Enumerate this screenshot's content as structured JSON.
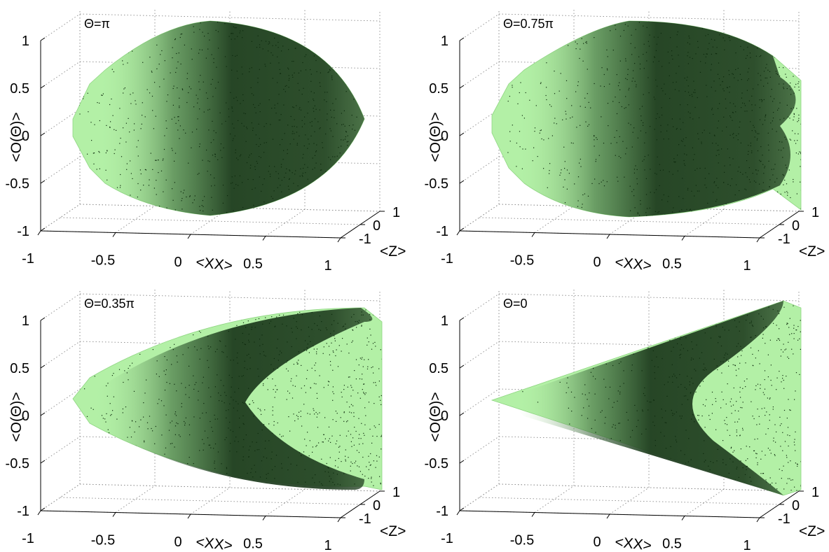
{
  "colors": {
    "hull": "#b3f0a6",
    "hull_edge": "#8fd682",
    "points_dark": "#1f3d1f",
    "points": "#0d2a0d"
  },
  "chart_data": [
    {
      "type": "scatter",
      "projection": "3d",
      "annotation": "Θ=π",
      "xlabel": "<XX>",
      "ylabel": "<O(Θ)>",
      "zlabel": "<Z>",
      "xticks": [
        "-1",
        "-0.5",
        "0",
        "0.5",
        "1"
      ],
      "yticks": [
        "-1",
        "0",
        "1"
      ],
      "zticks": [
        "-1",
        "-0.5",
        "0",
        "0.5",
        "1"
      ],
      "xlim": [
        -1,
        1
      ],
      "ylim": [
        -1,
        1
      ],
      "zlim": [
        -1,
        1
      ],
      "grid": true,
      "series": [
        {
          "kind": "convex-hull",
          "shape": "lens"
        },
        {
          "kind": "points",
          "shape": "lens"
        }
      ]
    },
    {
      "type": "scatter",
      "projection": "3d",
      "annotation": "Θ=0.75π",
      "xlabel": "<XX>",
      "ylabel": "<O(Θ)>",
      "zlabel": "<Z>",
      "xticks": [
        "-1",
        "-0.5",
        "0",
        "0.5",
        "1"
      ],
      "yticks": [
        "-1",
        "0",
        "1"
      ],
      "zticks": [
        "-1",
        "-0.5",
        "0",
        "0.5",
        "1"
      ],
      "xlim": [
        -1,
        1
      ],
      "ylim": [
        -1,
        1
      ],
      "zlim": [
        -1,
        1
      ],
      "grid": true,
      "series": [
        {
          "kind": "convex-hull",
          "shape": "lens-with-notch"
        },
        {
          "kind": "points",
          "shape": "lens-with-notch"
        }
      ]
    },
    {
      "type": "scatter",
      "projection": "3d",
      "annotation": "Θ=0.35π",
      "xlabel": "<XX>",
      "ylabel": "<O(Θ)>",
      "zlabel": "<Z>",
      "xticks": [
        "-1",
        "-0.5",
        "0",
        "0.5",
        "1"
      ],
      "yticks": [
        "-1",
        "0",
        "1"
      ],
      "zticks": [
        "-1",
        "-0.5",
        "0",
        "0.5",
        "1"
      ],
      "xlim": [
        -1,
        1
      ],
      "ylim": [
        -1,
        1
      ],
      "zlim": [
        -1,
        1
      ],
      "grid": true,
      "series": [
        {
          "kind": "convex-hull",
          "shape": "chevron"
        },
        {
          "kind": "points",
          "shape": "chevron"
        }
      ]
    },
    {
      "type": "scatter",
      "projection": "3d",
      "annotation": "Θ=0",
      "xlabel": "<XX>",
      "ylabel": "<O(Θ)>",
      "zlabel": "<Z>",
      "xticks": [
        "-1",
        "-0.5",
        "0",
        "0.5",
        "1"
      ],
      "yticks": [
        "-1",
        "0",
        "1"
      ],
      "zticks": [
        "-1",
        "-0.5",
        "0",
        "0.5",
        "1"
      ],
      "xlim": [
        -1,
        1
      ],
      "ylim": [
        -1,
        1
      ],
      "zlim": [
        -1,
        1
      ],
      "grid": true,
      "series": [
        {
          "kind": "convex-hull",
          "shape": "cone"
        },
        {
          "kind": "points",
          "shape": "cone"
        }
      ]
    }
  ]
}
